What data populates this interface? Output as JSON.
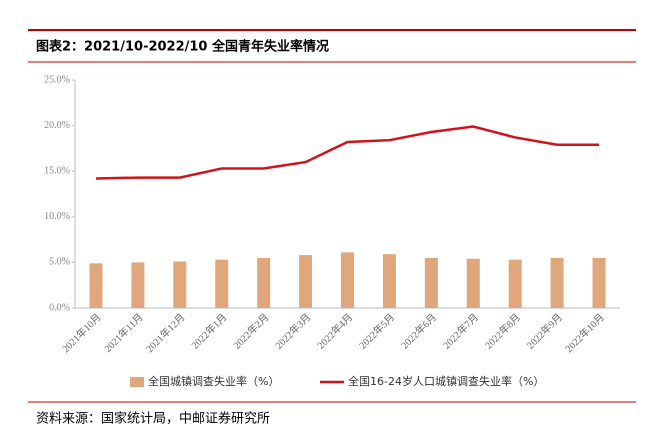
{
  "chart_data": {
    "type": "combo",
    "title": "图表2：2021/10-2022/10 全国青年失业率情况",
    "source": "资料来源：国家统计局，中邮证券研究所",
    "categories": [
      "2021年10月",
      "2021年11月",
      "2021年12月",
      "2022年1月",
      "2022年2月",
      "2022年3月",
      "2022年4月",
      "2022年5月",
      "2022年6月",
      "2022年7月",
      "2022年8月",
      "2022年9月",
      "2022年10月"
    ],
    "series": [
      {
        "name": "全国城镇调查失业率（%）",
        "type": "bar",
        "color": "#dfa77b",
        "values": [
          4.9,
          5.0,
          5.1,
          5.3,
          5.5,
          5.8,
          6.1,
          5.9,
          5.5,
          5.4,
          5.3,
          5.5,
          5.5
        ]
      },
      {
        "name": "全国16-24岁人口城镇调查失业率（%）",
        "type": "line",
        "color": "#d0121d",
        "values": [
          14.2,
          14.3,
          14.3,
          15.3,
          15.3,
          16.0,
          18.2,
          18.4,
          19.3,
          19.9,
          18.7,
          17.9,
          17.9
        ]
      }
    ],
    "ylim": [
      0,
      25
    ],
    "yticks": [
      {
        "value": 0,
        "label": "0.0%"
      },
      {
        "value": 5,
        "label": "5.0%"
      },
      {
        "value": 10,
        "label": "10.0%"
      },
      {
        "value": 15,
        "label": "15.0%"
      },
      {
        "value": 20,
        "label": "20.0%"
      },
      {
        "value": 25,
        "label": "25.0%"
      }
    ],
    "grid": false
  }
}
